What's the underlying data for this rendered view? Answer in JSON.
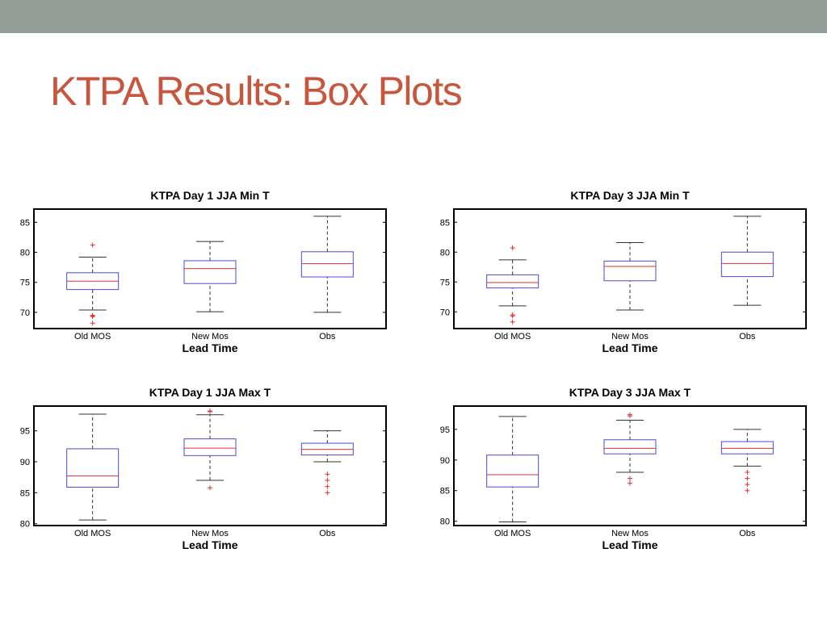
{
  "slide": {
    "title": "KTPA Results: Box Plots",
    "title_color": "#c8553d",
    "band_color": "#929e97"
  },
  "colors": {
    "box": "#4a4ad8",
    "median": "#e03030",
    "outlier": "#e03030",
    "whisker": "#333333",
    "frame": "#000000"
  },
  "chart_data": [
    {
      "type": "box",
      "title": "KTPA Day 1 JJA Min T",
      "xlabel": "Lead Time",
      "ylabel": "",
      "categories": [
        "Old MOS",
        "New Mos",
        "Obs"
      ],
      "ylim": [
        67.3,
        87.2
      ],
      "yticks": [
        70,
        75,
        80,
        85
      ],
      "boxes": [
        {
          "lo": 70.4,
          "q1": 73.8,
          "med": 75.2,
          "q3": 76.6,
          "hi": 79.2,
          "outliers": [
            81.2,
            69.5,
            69.4,
            69.3,
            68.2
          ]
        },
        {
          "lo": 70.1,
          "q1": 74.8,
          "med": 77.3,
          "q3": 78.6,
          "hi": 81.8,
          "outliers": []
        },
        {
          "lo": 70.0,
          "q1": 75.9,
          "med": 78.1,
          "q3": 80.1,
          "hi": 86.0,
          "outliers": []
        }
      ]
    },
    {
      "type": "box",
      "title": "KTPA Day 3 JJA Min T",
      "xlabel": "Lead Time",
      "ylabel": "",
      "categories": [
        "Old MOS",
        "New Mos",
        "Obs"
      ],
      "ylim": [
        67.2,
        87.2
      ],
      "yticks": [
        70,
        75,
        80,
        85
      ],
      "boxes": [
        {
          "lo": 71.0,
          "q1": 74.0,
          "med": 74.9,
          "q3": 76.2,
          "hi": 78.7,
          "outliers": [
            80.7,
            69.5,
            69.3,
            68.3
          ]
        },
        {
          "lo": 70.3,
          "q1": 75.2,
          "med": 77.6,
          "q3": 78.5,
          "hi": 81.6,
          "outliers": []
        },
        {
          "lo": 71.1,
          "q1": 75.9,
          "med": 78.1,
          "q3": 80.0,
          "hi": 86.0,
          "outliers": []
        }
      ]
    },
    {
      "type": "box",
      "title": "KTPA Day 1 JJA Max T",
      "xlabel": "Lead Time",
      "ylabel": "",
      "categories": [
        "Old MOS",
        "New Mos",
        "Obs"
      ],
      "ylim": [
        79.7,
        99.0
      ],
      "yticks": [
        80,
        85,
        90,
        95
      ],
      "boxes": [
        {
          "lo": 80.6,
          "q1": 85.9,
          "med": 87.7,
          "q3": 92.1,
          "hi": 97.7,
          "outliers": []
        },
        {
          "lo": 87.0,
          "q1": 91.0,
          "med": 92.2,
          "q3": 93.7,
          "hi": 97.6,
          "outliers": [
            98.2,
            98.1,
            85.8
          ]
        },
        {
          "lo": 90.0,
          "q1": 91.1,
          "med": 92.0,
          "q3": 93.0,
          "hi": 95.0,
          "outliers": [
            88.0,
            87.0,
            86.0,
            85.0
          ]
        }
      ]
    },
    {
      "type": "box",
      "title": "KTPA Day 3 JJA Max T",
      "xlabel": "Lead Time",
      "ylabel": "",
      "categories": [
        "Old MOS",
        "New Mos",
        "Obs"
      ],
      "ylim": [
        79.3,
        98.8
      ],
      "yticks": [
        80,
        85,
        90,
        95
      ],
      "boxes": [
        {
          "lo": 79.9,
          "q1": 85.6,
          "med": 87.6,
          "q3": 90.8,
          "hi": 97.1,
          "outliers": []
        },
        {
          "lo": 88.0,
          "q1": 91.0,
          "med": 91.9,
          "q3": 93.3,
          "hi": 96.5,
          "outliers": [
            97.4,
            97.2,
            87.0,
            86.2
          ]
        },
        {
          "lo": 89.0,
          "q1": 91.0,
          "med": 91.9,
          "q3": 93.0,
          "hi": 95.0,
          "outliers": [
            88.0,
            87.0,
            86.0,
            85.0
          ]
        }
      ]
    }
  ]
}
